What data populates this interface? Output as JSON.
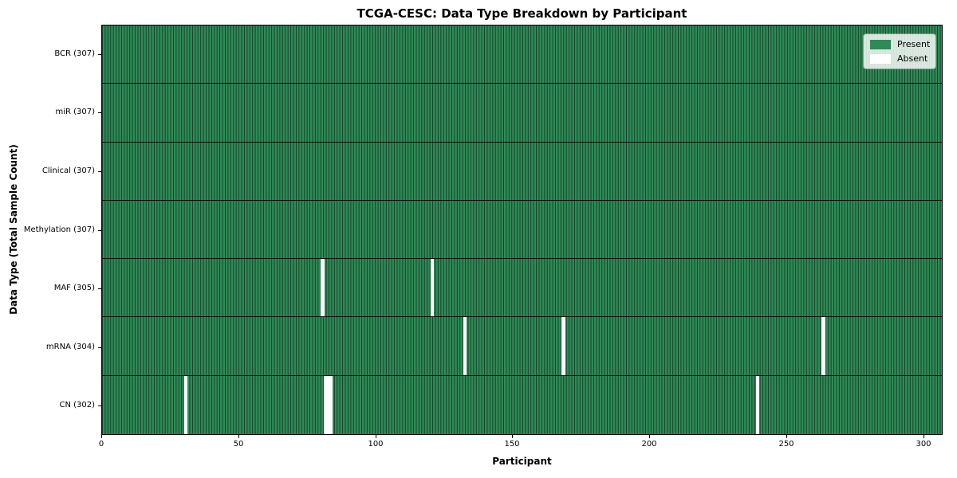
{
  "figure": {
    "background": "#ffffff"
  },
  "chart_data": {
    "type": "heatmap",
    "title": "TCGA-CESC: Data Type Breakdown by Participant",
    "xlabel": "Participant",
    "ylabel": "Data Type (Total Sample Count)",
    "x_ticks": [
      0,
      50,
      100,
      150,
      200,
      250,
      300
    ],
    "xlim": [
      0,
      307
    ],
    "n_participants": 307,
    "grid": false,
    "legend_position": "upper right",
    "colors": {
      "present": "#2e8b57",
      "absent": "#ffffff",
      "cell_edge": "rgba(0,0,0,0.55)",
      "row_separator": "#0d0d0d"
    },
    "legend": [
      {
        "label": "Present",
        "color": "#2e8b57"
      },
      {
        "label": "Absent",
        "color": "#ffffff"
      }
    ],
    "rows": [
      {
        "label": "BCR (307)",
        "data_type": "BCR",
        "present_count": 307,
        "absent_participants": []
      },
      {
        "label": "miR (307)",
        "data_type": "miR",
        "present_count": 307,
        "absent_participants": []
      },
      {
        "label": "Clinical (307)",
        "data_type": "Clinical",
        "present_count": 307,
        "absent_participants": []
      },
      {
        "label": "Methylation (307)",
        "data_type": "Methylation",
        "present_count": 307,
        "absent_participants": []
      },
      {
        "label": "MAF (305)",
        "data_type": "MAF",
        "present_count": 305,
        "absent_participants": [
          80,
          120
        ]
      },
      {
        "label": "mRNA (304)",
        "data_type": "mRNA",
        "present_count": 304,
        "absent_participants": [
          132,
          168,
          263
        ]
      },
      {
        "label": "CN (302)",
        "data_type": "CN",
        "present_count": 302,
        "absent_participants": [
          30,
          81,
          82,
          83,
          239
        ]
      }
    ]
  }
}
